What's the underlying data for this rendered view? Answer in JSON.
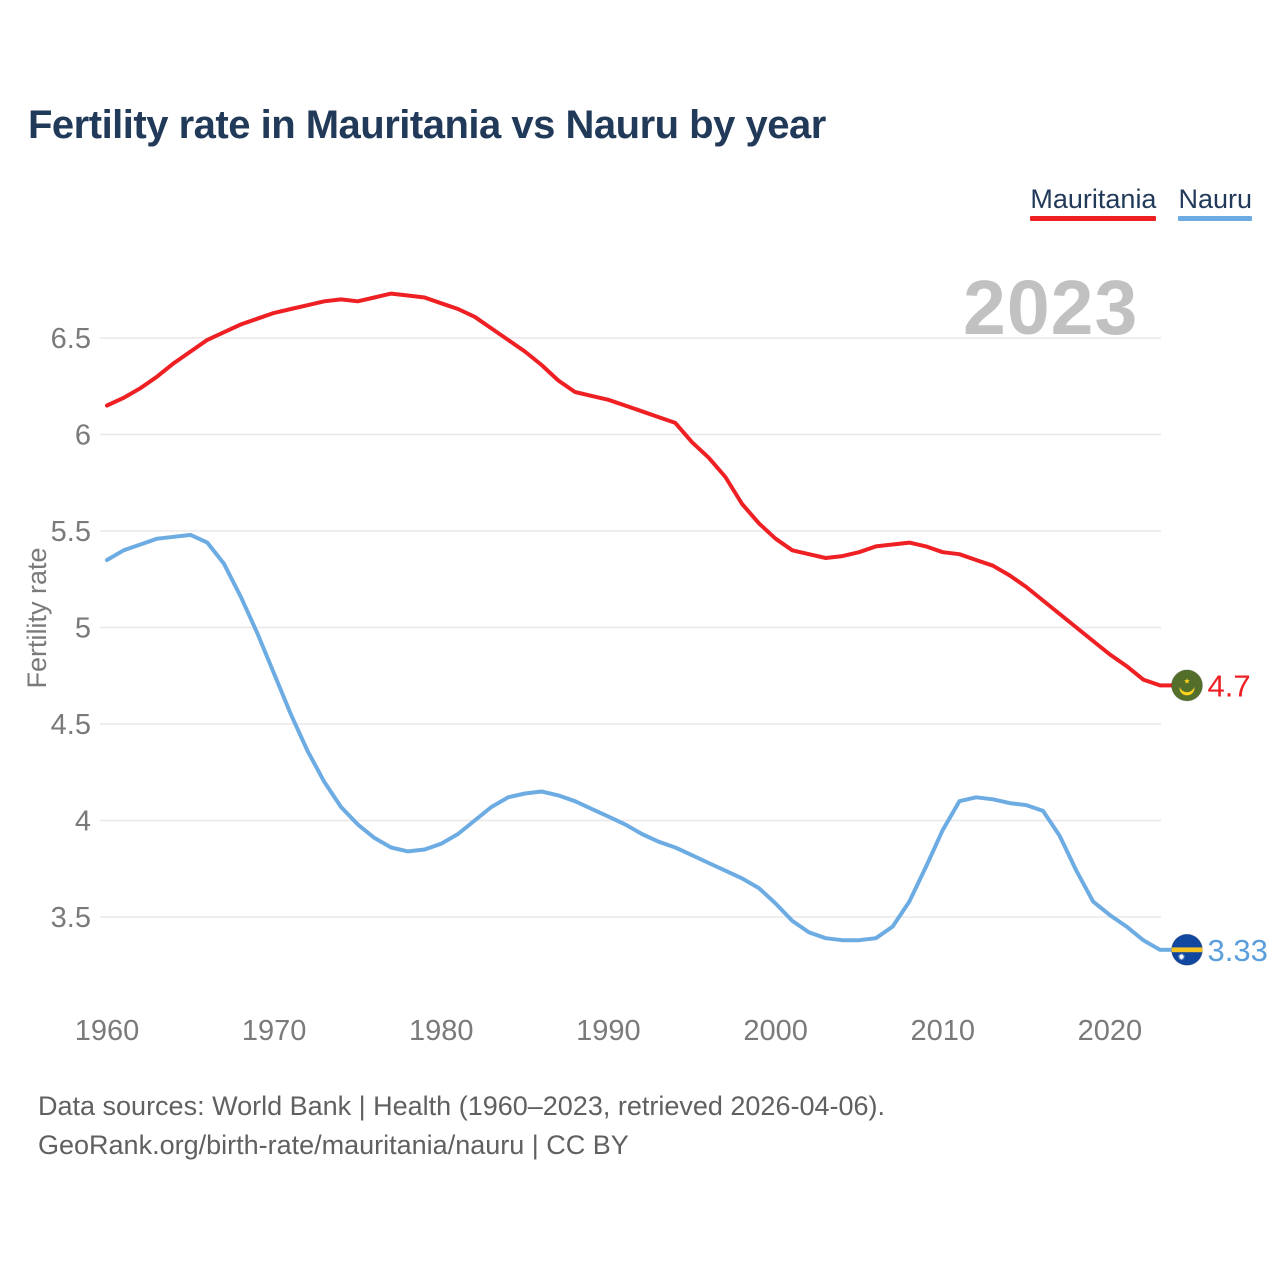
{
  "title": "Fertility rate in Mauritania vs Nauru by year",
  "watermark": "2023",
  "legend": [
    {
      "label": "Mauritania",
      "color": "#ee2024"
    },
    {
      "label": "Nauru",
      "color": "#6dace3"
    }
  ],
  "source": {
    "line1": "Data sources: World Bank | Health (1960–2023, retrieved 2026-04-06).",
    "line2": "GeoRank.org/birth-rate/mauritania/nauru | CC BY"
  },
  "colors": {
    "mauritania_red": "#ee2024",
    "nauru_blue": "#6dace3",
    "nauru_label_blue": "#5b9edc",
    "title_navy": "#223a59",
    "tick_gray": "#7a7a7a",
    "gridline_gray": "#e8e8e8",
    "watermark_gray": "#c1c1c1",
    "flag_green": "#536f2a",
    "flag_gold": "#ffd21e",
    "flag_blue": "#11479f",
    "flag_stripe_gold": "#f5c320"
  },
  "chart_data": {
    "type": "line",
    "title": "Fertility rate in Mauritania vs Nauru by year",
    "xlabel": "",
    "ylabel": "Fertility rate",
    "xlim": [
      1960,
      2023
    ],
    "ylim": [
      3.2,
      6.85
    ],
    "x_ticks": [
      1960,
      1970,
      1980,
      1990,
      2000,
      2010,
      2020
    ],
    "y_ticks": [
      6.5,
      6,
      5.5,
      5,
      4.5,
      4,
      3.5
    ],
    "grid": "horizontal",
    "legend_position": "top-right",
    "x": [
      1960,
      1961,
      1962,
      1963,
      1964,
      1965,
      1966,
      1967,
      1968,
      1969,
      1970,
      1971,
      1972,
      1973,
      1974,
      1975,
      1976,
      1977,
      1978,
      1979,
      1980,
      1981,
      1982,
      1983,
      1984,
      1985,
      1986,
      1987,
      1988,
      1989,
      1990,
      1991,
      1992,
      1993,
      1994,
      1995,
      1996,
      1997,
      1998,
      1999,
      2000,
      2001,
      2002,
      2003,
      2004,
      2005,
      2006,
      2007,
      2008,
      2009,
      2010,
      2011,
      2012,
      2013,
      2014,
      2015,
      2016,
      2017,
      2018,
      2019,
      2020,
      2021,
      2022,
      2023
    ],
    "series": [
      {
        "name": "Mauritania",
        "color": "#ee2024",
        "label_color": "#ee2024",
        "end_label": "4.7",
        "flag": "mauritania",
        "values": [
          6.15,
          6.19,
          6.24,
          6.3,
          6.37,
          6.43,
          6.49,
          6.53,
          6.57,
          6.6,
          6.63,
          6.65,
          6.67,
          6.69,
          6.7,
          6.69,
          6.71,
          6.73,
          6.72,
          6.71,
          6.68,
          6.65,
          6.61,
          6.55,
          6.49,
          6.43,
          6.36,
          6.28,
          6.22,
          6.2,
          6.18,
          6.15,
          6.12,
          6.09,
          6.06,
          5.96,
          5.88,
          5.78,
          5.64,
          5.54,
          5.46,
          5.4,
          5.38,
          5.36,
          5.37,
          5.39,
          5.42,
          5.43,
          5.44,
          5.42,
          5.39,
          5.38,
          5.35,
          5.32,
          5.27,
          5.21,
          5.14,
          5.07,
          5.0,
          4.93,
          4.86,
          4.8,
          4.73,
          4.7
        ]
      },
      {
        "name": "Nauru",
        "color": "#6dace3",
        "label_color": "#5b9edc",
        "end_label": "3.33",
        "flag": "nauru",
        "values": [
          5.35,
          5.4,
          5.43,
          5.46,
          5.47,
          5.48,
          5.44,
          5.33,
          5.16,
          4.97,
          4.76,
          4.55,
          4.36,
          4.2,
          4.07,
          3.98,
          3.91,
          3.86,
          3.84,
          3.85,
          3.88,
          3.93,
          4.0,
          4.07,
          4.12,
          4.14,
          4.15,
          4.13,
          4.1,
          4.06,
          4.02,
          3.98,
          3.93,
          3.89,
          3.86,
          3.82,
          3.78,
          3.74,
          3.7,
          3.65,
          3.57,
          3.48,
          3.42,
          3.39,
          3.38,
          3.38,
          3.39,
          3.45,
          3.58,
          3.76,
          3.95,
          4.1,
          4.12,
          4.11,
          4.09,
          4.08,
          4.05,
          3.92,
          3.74,
          3.58,
          3.51,
          3.45,
          3.38,
          3.33
        ]
      }
    ]
  }
}
